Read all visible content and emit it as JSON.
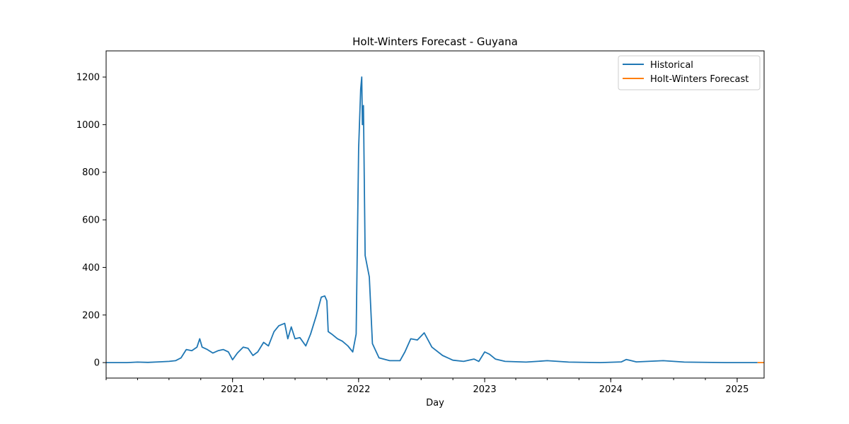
{
  "chart_data": {
    "type": "line",
    "title": "Holt-Winters Forecast - Guyana",
    "xlabel": "Day",
    "ylabel": "",
    "x_tick_labels": [
      "2021",
      "2022",
      "2023",
      "2024",
      "2025"
    ],
    "y_ticks": [
      0,
      200,
      400,
      600,
      800,
      1000,
      1200
    ],
    "xlim": [
      "2020-01-01",
      "2025-03-20"
    ],
    "ylim": [
      -65,
      1310
    ],
    "grid": false,
    "legend_position": "top-right",
    "series": [
      {
        "name": "Historical",
        "color": "#1f77b4",
        "points": [
          [
            "2020-01-01",
            0
          ],
          [
            "2020-03-01",
            0
          ],
          [
            "2020-04-01",
            2
          ],
          [
            "2020-05-01",
            1
          ],
          [
            "2020-06-01",
            3
          ],
          [
            "2020-07-01",
            5
          ],
          [
            "2020-07-20",
            8
          ],
          [
            "2020-08-05",
            20
          ],
          [
            "2020-08-20",
            55
          ],
          [
            "2020-09-05",
            50
          ],
          [
            "2020-09-20",
            65
          ],
          [
            "2020-09-28",
            100
          ],
          [
            "2020-10-05",
            65
          ],
          [
            "2020-10-20",
            55
          ],
          [
            "2020-11-05",
            40
          ],
          [
            "2020-11-20",
            50
          ],
          [
            "2020-12-05",
            55
          ],
          [
            "2020-12-20",
            45
          ],
          [
            "2021-01-01",
            12
          ],
          [
            "2021-01-15",
            40
          ],
          [
            "2021-02-01",
            65
          ],
          [
            "2021-02-15",
            60
          ],
          [
            "2021-03-01",
            30
          ],
          [
            "2021-03-15",
            45
          ],
          [
            "2021-04-01",
            85
          ],
          [
            "2021-04-15",
            70
          ],
          [
            "2021-05-01",
            130
          ],
          [
            "2021-05-15",
            155
          ],
          [
            "2021-06-01",
            165
          ],
          [
            "2021-06-10",
            100
          ],
          [
            "2021-06-20",
            150
          ],
          [
            "2021-07-01",
            100
          ],
          [
            "2021-07-15",
            105
          ],
          [
            "2021-08-01",
            70
          ],
          [
            "2021-08-15",
            120
          ],
          [
            "2021-09-01",
            200
          ],
          [
            "2021-09-15",
            275
          ],
          [
            "2021-09-25",
            280
          ],
          [
            "2021-10-01",
            260
          ],
          [
            "2021-10-05",
            130
          ],
          [
            "2021-10-15",
            120
          ],
          [
            "2021-11-01",
            100
          ],
          [
            "2021-11-15",
            90
          ],
          [
            "2021-12-01",
            70
          ],
          [
            "2021-12-15",
            45
          ],
          [
            "2021-12-25",
            120
          ],
          [
            "2022-01-01",
            900
          ],
          [
            "2022-01-07",
            1150
          ],
          [
            "2022-01-10",
            1200
          ],
          [
            "2022-01-12",
            1000
          ],
          [
            "2022-01-15",
            1080
          ],
          [
            "2022-01-20",
            450
          ],
          [
            "2022-02-01",
            360
          ],
          [
            "2022-02-10",
            80
          ],
          [
            "2022-03-01",
            20
          ],
          [
            "2022-04-01",
            8
          ],
          [
            "2022-05-01",
            8
          ],
          [
            "2022-05-15",
            45
          ],
          [
            "2022-06-01",
            100
          ],
          [
            "2022-06-20",
            95
          ],
          [
            "2022-07-10",
            125
          ],
          [
            "2022-08-01",
            65
          ],
          [
            "2022-09-01",
            30
          ],
          [
            "2022-10-01",
            10
          ],
          [
            "2022-11-01",
            5
          ],
          [
            "2022-12-01",
            15
          ],
          [
            "2022-12-15",
            5
          ],
          [
            "2023-01-01",
            45
          ],
          [
            "2023-01-15",
            35
          ],
          [
            "2023-02-01",
            15
          ],
          [
            "2023-03-01",
            5
          ],
          [
            "2023-05-01",
            2
          ],
          [
            "2023-07-01",
            8
          ],
          [
            "2023-09-01",
            2
          ],
          [
            "2023-12-01",
            0
          ],
          [
            "2024-02-01",
            3
          ],
          [
            "2024-02-15",
            13
          ],
          [
            "2024-03-15",
            3
          ],
          [
            "2024-06-01",
            8
          ],
          [
            "2024-08-01",
            2
          ],
          [
            "2024-12-01",
            0
          ],
          [
            "2025-03-01",
            0
          ]
        ]
      },
      {
        "name": "Holt-Winters Forecast",
        "color": "#ff7f0e",
        "points": [
          [
            "2025-03-01",
            0
          ],
          [
            "2025-03-20",
            0
          ]
        ]
      }
    ]
  }
}
